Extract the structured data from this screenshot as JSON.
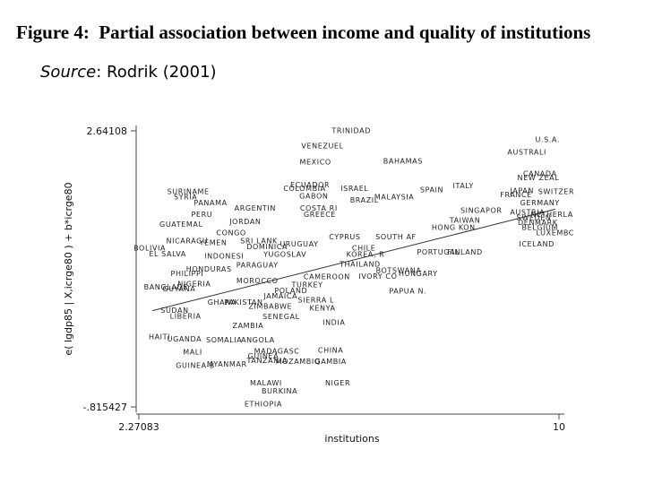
{
  "title_label": "Figure 4:",
  "title": "Partial association between income and quality of institutions",
  "source_label": "Source",
  "source_text": ": Rodrik (2001)",
  "chart_data": {
    "type": "scatter",
    "x_label": "institutions",
    "y_label": "e( lgdp85 | X,icrge80 ) + b*icrge80",
    "xlim": [
      2.27083,
      10
    ],
    "xticks": [
      2.27083,
      10
    ],
    "ylim": [
      -0.815427,
      2.64108
    ],
    "yticks": [
      {
        "value": -0.815427,
        "label": "-.815427"
      },
      2.64108
    ],
    "fit": {
      "x": [
        2.52,
        9.93
      ],
      "y": [
        0.39,
        1.66
      ]
    },
    "labels": [
      "TRINIDAD",
      "U.S.A.",
      "VENEZUEL",
      "AUSTRALI",
      "MEXICO",
      "BAHAMAS",
      "CANADA",
      "NEW ZEAL",
      "ECUADOR",
      "COLOMBIA",
      "ISRAEL",
      "ITALY",
      "SPAIN",
      "JAPAN",
      "SWITZER",
      "FRANCE",
      "SURINAME",
      "SYRIA",
      "GABON",
      "MALAYSIA",
      "BRAZIL",
      "PANAMA",
      "GERMANY",
      "ARGENTIN",
      "COSTA RI",
      "SINGAPOR",
      "AUSTRIA",
      "NETHERLA",
      "PERU",
      "GREECE",
      "SWEDEN",
      "TAIWAN",
      "JORDAN",
      "DENMARK",
      "GUATEMAL",
      "BELGIUM",
      "HONG KON",
      "LUXEMBC",
      "CONGO",
      "SOUTH AF",
      "CYPRUS",
      "NICARAGU",
      "SRI LANK",
      "YEMEN",
      "URUGUAY",
      "ICELAND",
      "DOMINICA",
      "BOLIVIA",
      "CHILE",
      "PORTUGAL",
      "FINLAND",
      "EL SALVA",
      "YUGOSLAV",
      "KOREA, R",
      "INDONESI",
      "THAILAND",
      "PARAGUAY",
      "HONDURAS",
      "BOTSWANA",
      "PHILIPPI",
      "HUNGARY",
      "IVORY CO",
      "CAMEROON",
      "MOROCCO",
      "NIGERIA",
      "TURKEY",
      "BANGLADE",
      "GUYANA",
      "POLAND",
      "PAPUA N.",
      "JAMAICA",
      "SIERRA L",
      "GHANA",
      "PAKISTAN",
      "ZIMBABWE",
      "KENYA",
      "SUDAN",
      "LIBERIA",
      "SENEGAL",
      "INDIA",
      "ZAMBIA",
      "HAITI",
      "UGANDA",
      "SOMALIA",
      "ANGOLA",
      "CHINA",
      "MADAGASC",
      "MALI",
      "GUINEA",
      "TANZANIA",
      "MOZAMBIQ",
      "GAMBIA",
      "MYANMAR",
      "GUINEA-B",
      "NIGER",
      "MALAWI",
      "BURKINA",
      "ETHIOPIA"
    ],
    "x": [
      6.18,
      9.79,
      5.65,
      9.41,
      5.52,
      7.13,
      9.65,
      9.62,
      5.42,
      5.32,
      6.24,
      8.24,
      7.66,
      9.32,
      9.95,
      9.21,
      3.18,
      3.13,
      5.49,
      6.97,
      6.42,
      3.59,
      9.65,
      4.41,
      5.58,
      8.57,
      9.42,
      9.87,
      3.43,
      5.6,
      9.54,
      8.27,
      4.23,
      9.61,
      3.05,
      9.65,
      8.06,
      9.93,
      3.97,
      7.0,
      6.06,
      3.16,
      4.48,
      3.64,
      5.22,
      9.59,
      4.63,
      2.47,
      6.41,
      7.78,
      8.27,
      2.8,
      4.96,
      6.44,
      3.84,
      6.34,
      4.45,
      3.56,
      7.05,
      3.16,
      7.41,
      6.67,
      5.73,
      4.45,
      3.29,
      5.37,
      2.77,
      3.01,
      5.07,
      7.22,
      4.88,
      5.53,
      3.8,
      4.2,
      4.69,
      5.65,
      2.93,
      3.13,
      4.89,
      5.86,
      4.28,
      2.65,
      3.11,
      3.84,
      4.46,
      5.8,
      4.81,
      3.26,
      4.56,
      4.63,
      5.2,
      5.8,
      3.89,
      3.31,
      5.93,
      4.61,
      4.86,
      4.56
    ],
    "y": [
      2.64,
      2.53,
      2.45,
      2.37,
      2.25,
      2.26,
      2.1,
      2.05,
      1.96,
      1.92,
      1.92,
      1.95,
      1.9,
      1.89,
      1.88,
      1.84,
      1.88,
      1.81,
      1.82,
      1.81,
      1.77,
      1.74,
      1.74,
      1.67,
      1.67,
      1.64,
      1.62,
      1.59,
      1.59,
      1.59,
      1.55,
      1.52,
      1.5,
      1.49,
      1.47,
      1.43,
      1.43,
      1.36,
      1.36,
      1.31,
      1.31,
      1.26,
      1.26,
      1.24,
      1.22,
      1.22,
      1.19,
      1.17,
      1.17,
      1.12,
      1.12,
      1.1,
      1.09,
      1.09,
      1.07,
      0.97,
      0.96,
      0.91,
      0.89,
      0.85,
      0.85,
      0.82,
      0.81,
      0.76,
      0.72,
      0.71,
      0.68,
      0.66,
      0.64,
      0.63,
      0.57,
      0.52,
      0.49,
      0.49,
      0.44,
      0.42,
      0.39,
      0.32,
      0.31,
      0.24,
      0.2,
      0.06,
      0.03,
      0.02,
      0.02,
      -0.11,
      -0.12,
      -0.13,
      -0.18,
      -0.24,
      -0.25,
      -0.25,
      -0.28,
      -0.3,
      -0.52,
      -0.52,
      -0.62,
      -0.78
    ]
  }
}
